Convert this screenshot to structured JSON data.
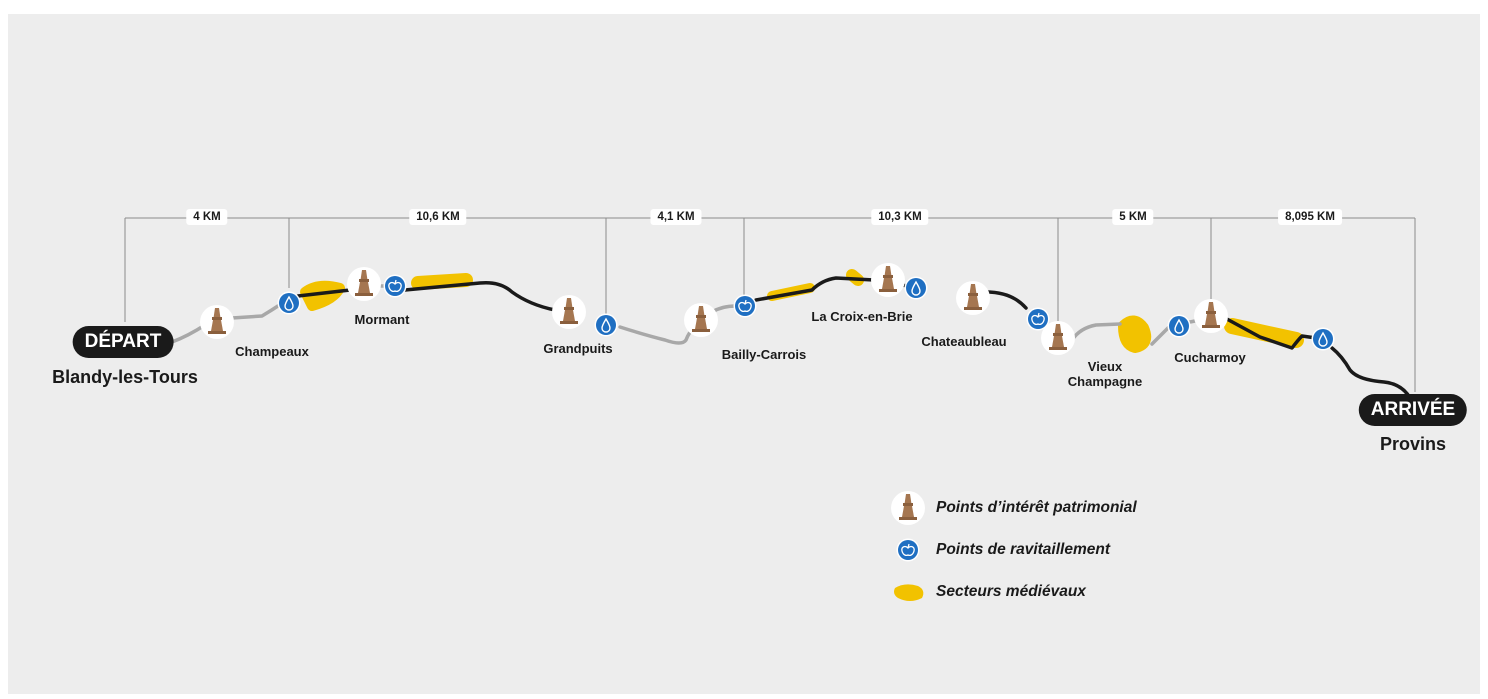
{
  "start": {
    "badge": "DÉPART",
    "city": "Blandy-les-Tours"
  },
  "finish": {
    "badge": "ARRIVÉE",
    "city": "Provins"
  },
  "segments": [
    "4 KM",
    "10,6 KM",
    "4,1 KM",
    "10,3 KM",
    "5 KM",
    "8,095 KM"
  ],
  "towns": [
    "Champeaux",
    "Mormant",
    "Grandpuits",
    "Bailly-Carrois",
    "La Croix-en-Brie",
    "Chateaubleau",
    "Vieux Champagne",
    "Cucharmoy"
  ],
  "legend": {
    "heritage": "Points d’intérêt patrimonial",
    "supply": "Points de ravitaillement",
    "medieval": "Secteurs médiévaux"
  },
  "colors": {
    "background": "#ededed",
    "route_paved": "#1a1a1a",
    "route_unpaved": "#a8a8a8",
    "medieval": "#f2c200",
    "supply": "#1f6fc2",
    "heritage": "#a57650"
  },
  "icons": {
    "heritage": "tower-icon",
    "supply_water": "water-drop-icon",
    "supply_food": "apple-icon",
    "medieval": "yellow-blob-icon"
  }
}
